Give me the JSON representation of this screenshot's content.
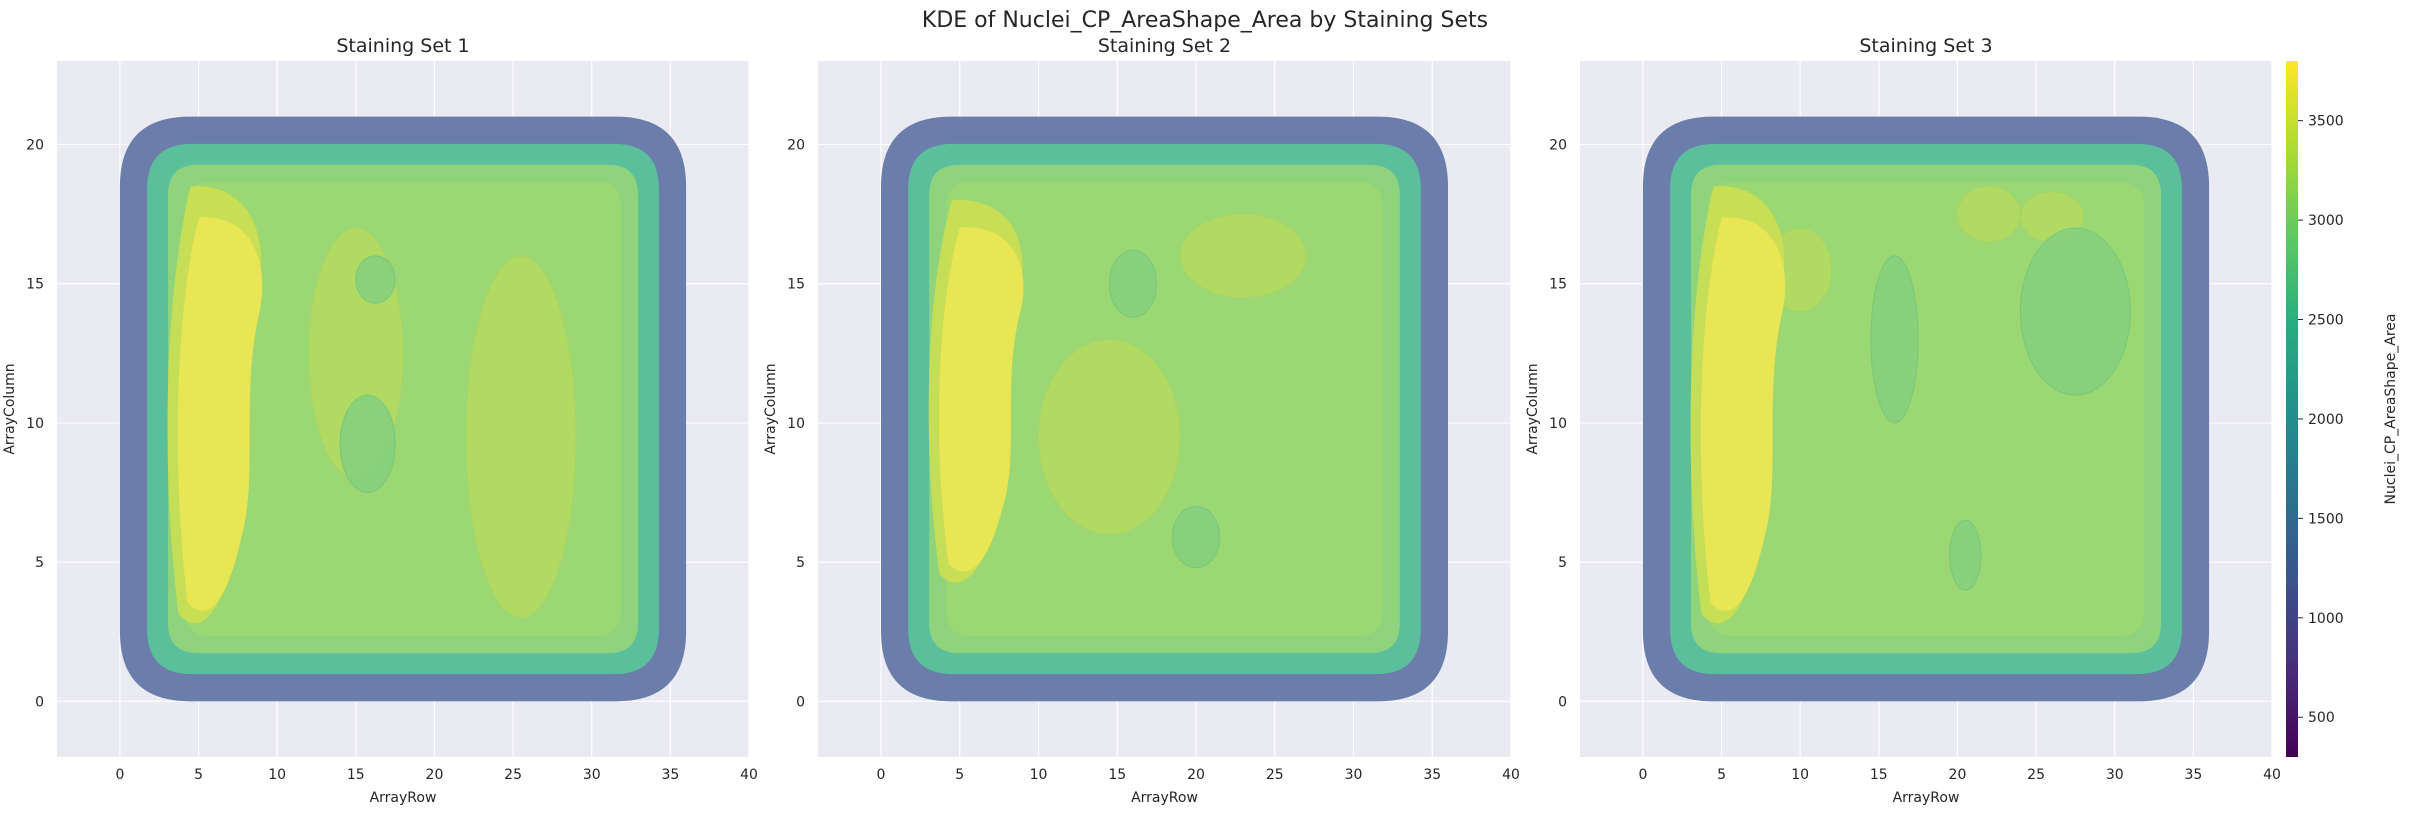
{
  "figure": {
    "title": "KDE of Nuclei_CP_AreaShape_Area by Staining Sets"
  },
  "colors": {
    "panel_background": "#eaeaf2",
    "grid": "#ffffff",
    "outer_band": "#6b7daa",
    "second_band": "#5cbf9b",
    "body": "#8fd47c",
    "bright": "#b8db5e",
    "peak": "#e8e655",
    "colormap": [
      "#440154",
      "#472d7b",
      "#3b528b",
      "#2c728e",
      "#21918c",
      "#28ae80",
      "#5ec962",
      "#addc30",
      "#fde725"
    ]
  },
  "colorbar": {
    "label": "Nuclei_CP_AreaShape_Area",
    "range": [
      300,
      3800
    ],
    "ticks": [
      "500",
      "1000",
      "1500",
      "2000",
      "2500",
      "3000",
      "3500"
    ],
    "tick_values": [
      500,
      1000,
      1500,
      2000,
      2500,
      3000,
      3500
    ]
  },
  "chart_data": [
    {
      "type": "heatmap",
      "title": "Staining Set 1",
      "xlabel": "ArrayRow",
      "ylabel": "ArrayColumn",
      "xlim": [
        -4,
        40
      ],
      "ylim": [
        -2,
        23
      ],
      "xticks": [
        0,
        5,
        10,
        15,
        20,
        25,
        30,
        35,
        40
      ],
      "xtick_labels": [
        "0",
        "5",
        "10",
        "15",
        "20",
        "25",
        "30",
        "35",
        "40"
      ],
      "yticks": [
        0,
        5,
        10,
        15,
        20
      ],
      "ytick_labels": [
        "0",
        "5",
        "10",
        "15",
        "20"
      ],
      "grid": true,
      "density_extent": {
        "x": [
          0,
          36
        ],
        "y": [
          0,
          21
        ]
      },
      "peak_region": {
        "x": [
          3,
          9
        ],
        "y": [
          2.5,
          18.5
        ]
      },
      "secondary_high_regions": [
        {
          "x": [
            12,
            18
          ],
          "y": [
            8,
            17
          ]
        },
        {
          "x": [
            22,
            29
          ],
          "y": [
            3,
            16
          ]
        }
      ],
      "local_low_regions": [
        {
          "x": [
            15,
            17.5
          ],
          "y": [
            14.3,
            16
          ]
        },
        {
          "x": [
            14,
            17.5
          ],
          "y": [
            7.5,
            11
          ]
        }
      ]
    },
    {
      "type": "heatmap",
      "title": "Staining Set 2",
      "xlabel": "ArrayRow",
      "ylabel": "ArrayColumn",
      "xlim": [
        -4,
        40
      ],
      "ylim": [
        -2,
        23
      ],
      "xticks": [
        0,
        5,
        10,
        15,
        20,
        25,
        30,
        35,
        40
      ],
      "xtick_labels": [
        "0",
        "5",
        "10",
        "15",
        "20",
        "25",
        "30",
        "35",
        "40"
      ],
      "yticks": [
        0,
        5,
        10,
        15,
        20
      ],
      "ytick_labels": [
        "0",
        "5",
        "10",
        "15",
        "20"
      ],
      "grid": true,
      "density_extent": {
        "x": [
          0,
          36
        ],
        "y": [
          0,
          21
        ]
      },
      "peak_region": {
        "x": [
          3,
          9
        ],
        "y": [
          4,
          18
        ]
      },
      "secondary_high_regions": [
        {
          "x": [
            19,
            27
          ],
          "y": [
            14.5,
            17.5
          ]
        },
        {
          "x": [
            10,
            19
          ],
          "y": [
            6,
            13
          ]
        }
      ],
      "local_low_regions": [
        {
          "x": [
            14.5,
            17.5
          ],
          "y": [
            13.8,
            16.2
          ]
        },
        {
          "x": [
            18.5,
            21.5
          ],
          "y": [
            4.8,
            7
          ]
        }
      ]
    },
    {
      "type": "heatmap",
      "title": "Staining Set 3",
      "xlabel": "ArrayRow",
      "ylabel": "ArrayColumn",
      "xlim": [
        -4,
        40
      ],
      "ylim": [
        -2,
        23
      ],
      "xticks": [
        0,
        5,
        10,
        15,
        20,
        25,
        30,
        35,
        40
      ],
      "xtick_labels": [
        "0",
        "5",
        "10",
        "15",
        "20",
        "25",
        "30",
        "35",
        "40"
      ],
      "yticks": [
        0,
        5,
        10,
        15,
        20
      ],
      "ytick_labels": [
        "0",
        "5",
        "10",
        "15",
        "20"
      ],
      "grid": true,
      "density_extent": {
        "x": [
          0,
          36
        ],
        "y": [
          0,
          21
        ]
      },
      "peak_region": {
        "x": [
          3,
          9
        ],
        "y": [
          2.5,
          18.5
        ]
      },
      "secondary_high_regions": [
        {
          "x": [
            8,
            12
          ],
          "y": [
            14,
            17
          ]
        },
        {
          "x": [
            20,
            24
          ],
          "y": [
            16.5,
            18.5
          ]
        },
        {
          "x": [
            24,
            28
          ],
          "y": [
            16.5,
            18.3
          ]
        }
      ],
      "local_low_regions": [
        {
          "x": [
            14.5,
            17.5
          ],
          "y": [
            10,
            16
          ]
        },
        {
          "x": [
            19.5,
            21.5
          ],
          "y": [
            4,
            6.5
          ]
        },
        {
          "x": [
            24,
            31
          ],
          "y": [
            11,
            17
          ]
        }
      ]
    }
  ]
}
